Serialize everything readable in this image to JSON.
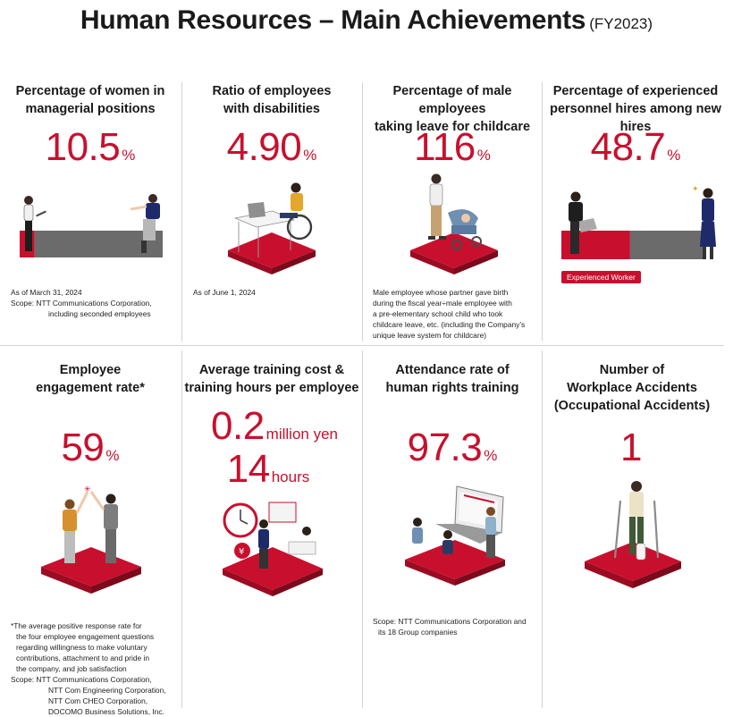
{
  "title": {
    "main": "Human Resources – Main Achievements",
    "period": "(FY2023)"
  },
  "metrics": [
    {
      "heading_lines": [
        "Percentage of women in",
        "managerial positions"
      ],
      "value": "10.5",
      "unit": "%",
      "share": 0.105,
      "notes": [
        "As of March 31, 2024",
        "Scope: NTT Communications Corporation,",
        "including seconded employees"
      ]
    },
    {
      "heading_lines": [
        "Ratio of employees",
        "with disabilities"
      ],
      "value": "4.90",
      "unit": "%",
      "notes": [
        "As of June 1, 2024"
      ]
    },
    {
      "heading_lines": [
        "Percentage of male employees",
        "taking leave for childcare"
      ],
      "value": "116",
      "unit": "%",
      "notes": [
        "Male employee whose partner gave birth",
        "during the fiscal year÷male employee with",
        "a pre-elementary school child who took",
        "childcare leave, etc. (including the Company’s",
        "unique leave system for childcare)"
      ]
    },
    {
      "heading_lines": [
        "Percentage of experienced",
        "personnel hires among new hires"
      ],
      "value": "48.7",
      "unit": "%",
      "share": 0.487,
      "tag": "Experienced Worker"
    },
    {
      "heading_lines": [
        "Employee",
        "engagement rate*"
      ],
      "value": "59",
      "unit": "%",
      "notes": [
        "*The average positive response rate for",
        "the four employee engagement questions",
        "regarding willingness to make voluntary",
        "contributions, attachment to and pride in",
        "the company, and job satisfaction",
        "Scope: NTT Communications Corporation,",
        "NTT Com Engineering Corporation,",
        "NTT Com CHEO Corporation,",
        "DOCOMO Business Solutions, Inc."
      ]
    },
    {
      "heading_lines": [
        "Average training cost &",
        "training hours per employee"
      ],
      "value": "0.2",
      "unit": "million yen",
      "value2": "14",
      "unit2": "hours"
    },
    {
      "heading_lines": [
        "Attendance rate of",
        "human rights training"
      ],
      "value": "97.3",
      "unit": "%",
      "notes": [
        "Scope: NTT Communications Corporation and",
        "its 18 Group companies"
      ]
    },
    {
      "heading_lines": [
        "Number of",
        "Workplace Accidents",
        "(Occupational Accidents)"
      ],
      "value": "1",
      "unit": ""
    }
  ],
  "colors": {
    "accent": "#c8102e",
    "bar_gray": "#6b6b6b",
    "divider": "#d4d4d4"
  }
}
